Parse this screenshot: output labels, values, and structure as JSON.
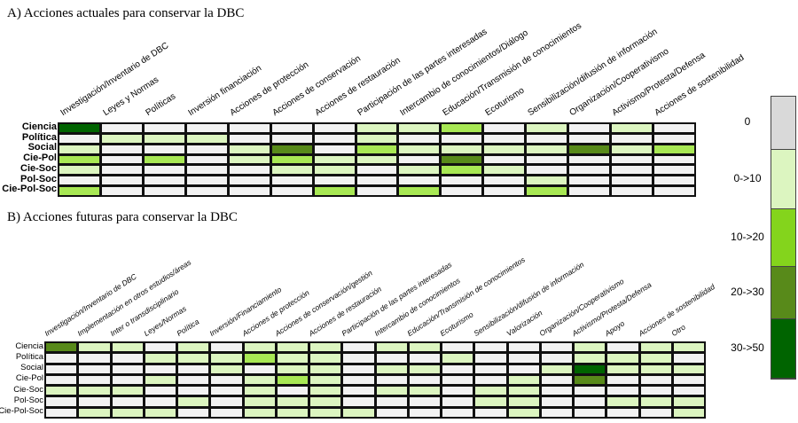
{
  "chart_data": [
    {
      "type": "heatmap",
      "title": "A) Acciones actuales para conservar la DBC",
      "rows": [
        "Ciencia",
        "Política",
        "Social",
        "Cie-Pol",
        "Cie-Soc",
        "Pol-Soc",
        "Cie-Pol-Soc"
      ],
      "columns": [
        "Investigación/Inventario de DBC",
        "Leyes y Normas",
        "Políticas",
        "Inversión financiación",
        "Acciones de protección",
        "Acciones de conservación",
        "Acciones de restauración",
        "Participación de las partes interesadas",
        "Intercambio de conocimientos/Diálogo",
        "Educación/Transmisión de conocimientos",
        "Ecoturismo",
        "Sensibilización/difusión de información",
        "Organización/Cooperativismo",
        "Activismo/Protesta/Defensa",
        "Acciones de sostenibilidad"
      ],
      "values": [
        [
          4,
          0,
          0,
          0,
          0,
          0,
          0,
          1,
          1,
          2,
          0,
          1,
          0,
          1,
          0
        ],
        [
          0,
          1,
          1,
          1,
          0,
          0,
          0,
          1,
          0,
          0,
          0,
          0,
          0,
          0,
          0
        ],
        [
          1,
          0,
          0,
          0,
          1,
          3,
          0,
          2,
          1,
          1,
          1,
          1,
          3,
          1,
          2
        ],
        [
          2,
          0,
          2,
          0,
          1,
          2,
          1,
          1,
          0,
          3,
          0,
          0,
          0,
          0,
          0
        ],
        [
          1,
          0,
          0,
          0,
          0,
          1,
          1,
          0,
          1,
          2,
          1,
          0,
          0,
          0,
          0
        ],
        [
          0,
          0,
          0,
          0,
          0,
          0,
          0,
          0,
          0,
          0,
          0,
          1,
          0,
          0,
          0
        ],
        [
          2,
          0,
          0,
          0,
          0,
          0,
          2,
          0,
          2,
          0,
          0,
          2,
          0,
          0,
          0
        ]
      ]
    },
    {
      "type": "heatmap",
      "title": "B) Acciones futuras para conservar la DBC",
      "rows": [
        "Ciencia",
        "Política",
        "Social",
        "Cie-Pol",
        "Cie-Soc",
        "Pol-Soc",
        "Cie-Pol-Soc"
      ],
      "columns": [
        "Investigación/Inventario de DBC",
        "Implementación en otros estudios/áreas",
        "Inter o transdisciplinario",
        "Leyes/Normas",
        "Política",
        "Inversión/Financiamiento",
        "Acciones de protección",
        "Acciones de conservación/gestión",
        "Acciones de restauración",
        "Participación de las partes interesadas",
        "Intercambio de conocimientos",
        "Educación/Transmisión de conocimientos",
        "Ecoturismo",
        "Sensibilización/difusión de información",
        "Valorización",
        "Organización/Cooperativismo",
        "Activismo/Protesta/Defensa",
        "Apoyo",
        "Acciones de sostenibilidad",
        "Otro"
      ],
      "values": [
        [
          3,
          1,
          1,
          0,
          1,
          0,
          1,
          1,
          1,
          0,
          1,
          1,
          0,
          0,
          0,
          0,
          1,
          0,
          1,
          1
        ],
        [
          0,
          0,
          0,
          1,
          1,
          1,
          2,
          1,
          1,
          0,
          0,
          0,
          1,
          0,
          0,
          0,
          1,
          1,
          1,
          0
        ],
        [
          0,
          0,
          0,
          0,
          0,
          1,
          0,
          1,
          1,
          0,
          1,
          1,
          0,
          0,
          0,
          1,
          4,
          1,
          1,
          1
        ],
        [
          0,
          0,
          0,
          1,
          0,
          0,
          1,
          2,
          1,
          0,
          0,
          0,
          0,
          0,
          1,
          0,
          3,
          0,
          0,
          0
        ],
        [
          1,
          1,
          1,
          0,
          0,
          0,
          1,
          0,
          1,
          0,
          1,
          1,
          0,
          1,
          1,
          0,
          0,
          0,
          0,
          0
        ],
        [
          0,
          0,
          0,
          0,
          1,
          0,
          1,
          1,
          1,
          0,
          0,
          0,
          0,
          1,
          1,
          0,
          0,
          1,
          1,
          1
        ],
        [
          0,
          1,
          1,
          1,
          0,
          0,
          1,
          1,
          1,
          1,
          0,
          0,
          0,
          0,
          1,
          0,
          0,
          0,
          0,
          1
        ]
      ]
    }
  ],
  "legend": {
    "bins": [
      "0",
      "0->10",
      "10->20",
      "20->30",
      "30->50"
    ],
    "legend_colors": [
      "#d9d9d9",
      "#dcf5c0",
      "#84d41c",
      "#588a1a",
      "#006400"
    ],
    "cell_colors": [
      "#f2f2f2",
      "#dcf5c0",
      "#a8e854",
      "#588a1a",
      "#006400"
    ]
  }
}
